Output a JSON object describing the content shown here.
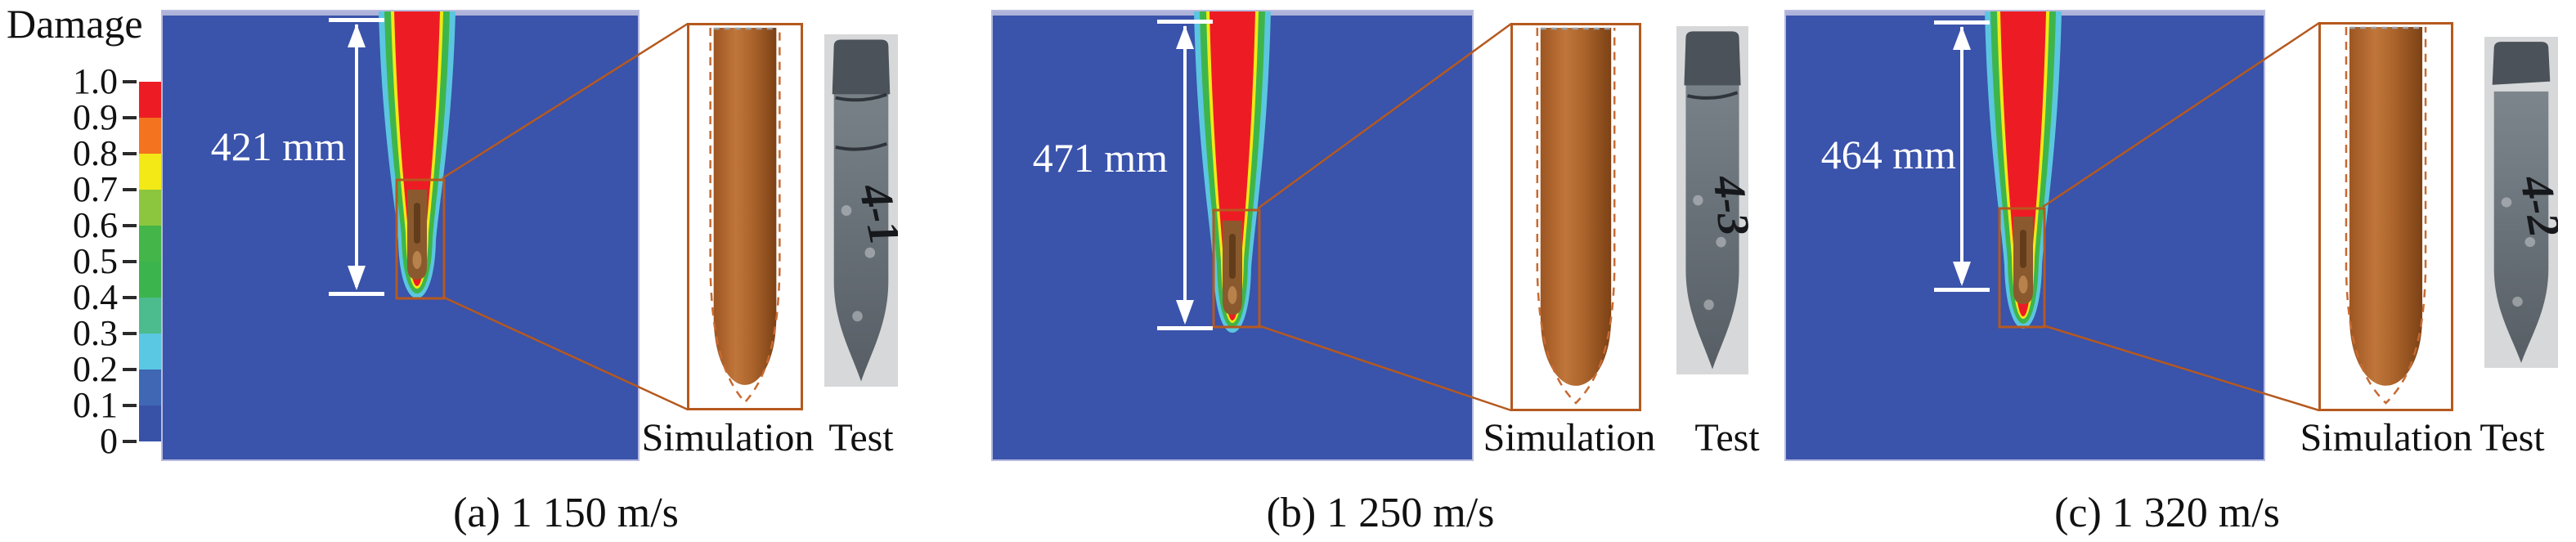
{
  "figure": {
    "legend": {
      "title": "Damage",
      "tick_labels": [
        "1.0",
        "0.9",
        "0.8",
        "0.7",
        "0.6",
        "0.5",
        "0.4",
        "0.3",
        "0.2",
        "0.1",
        "0"
      ],
      "segment_colors_top_to_bottom": [
        "#ed1c24",
        "#f4731f",
        "#f2e916",
        "#8cc63e",
        "#44b549",
        "#3bb44d",
        "#4cbb8e",
        "#5ac8e2",
        "#3f67b4",
        "#3852a7"
      ]
    },
    "units": [
      {
        "id": "a",
        "caption": "(a) 1 150 m/s",
        "depth_label": "421 mm",
        "sim_label": "Simulation",
        "test_label": "Test",
        "specimen_mark": "4-1"
      },
      {
        "id": "b",
        "caption": "(b) 1 250 m/s",
        "depth_label": "471 mm",
        "sim_label": "Simulation",
        "test_label": "Test",
        "specimen_mark": "4-3"
      },
      {
        "id": "c",
        "caption": "(c) 1 320 m/s",
        "depth_label": "464 mm",
        "sim_label": "Simulation",
        "test_label": "Test",
        "specimen_mark": "4-2"
      }
    ],
    "colors": {
      "panel_background": "#3a53ab",
      "panel_edge": "#b7bbde",
      "damage_full_red": "#ed1c24",
      "contour_yellow": "#f2e916",
      "contour_green": "#3eb54a",
      "contour_cyan": "#5bc6e0",
      "projectile_brown": "#8a5a2e",
      "inset_border_orange": "#b5591f",
      "annotation_white": "#ffffff"
    }
  },
  "chart_data": {
    "type": "heatmap",
    "legend_title": "Damage",
    "damage_scale_ticks": [
      1.0,
      0.9,
      0.8,
      0.7,
      0.6,
      0.5,
      0.4,
      0.3,
      0.2,
      0.1,
      0
    ],
    "legend_colors_top_to_bottom": [
      "#ed1c24",
      "#f4731f",
      "#f2e916",
      "#8cc63e",
      "#44b549",
      "#3bb44d",
      "#4cbb8e",
      "#5ac8e2",
      "#3f67b4",
      "#3852a7"
    ],
    "panels": [
      {
        "label": "(a)",
        "impact_velocity": "1 150 m/s",
        "penetration_depth": "421 mm",
        "comparison": [
          "Simulation",
          "Test"
        ],
        "specimen_mark": "4-1"
      },
      {
        "label": "(b)",
        "impact_velocity": "1 250 m/s",
        "penetration_depth": "471 mm",
        "comparison": [
          "Simulation",
          "Test"
        ],
        "specimen_mark": "4-3"
      },
      {
        "label": "(c)",
        "impact_velocity": "1 320 m/s",
        "penetration_depth": "464 mm",
        "comparison": [
          "Simulation",
          "Test"
        ],
        "specimen_mark": "4-2"
      }
    ],
    "layout_hints": {
      "legend_position": "left",
      "panels_arrangement": "row",
      "each_panel_contains": [
        "damage contour field",
        "penetration depth dimension arrow",
        "zoom callout to residual projectile",
        "photograph of recovered projectile"
      ]
    }
  }
}
